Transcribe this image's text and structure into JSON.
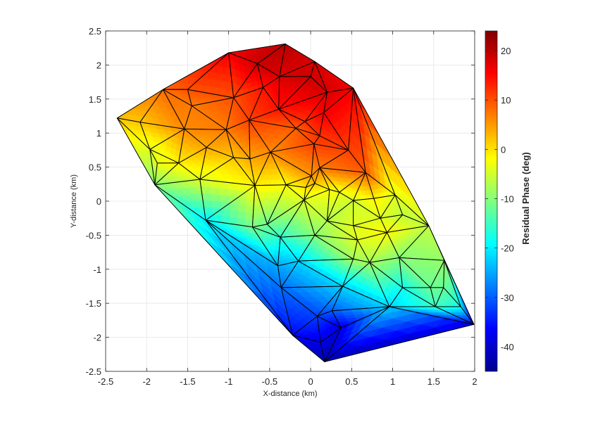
{
  "chart_data": {
    "type": "heatmap",
    "subtype": "triangulated-surface",
    "xlabel": "X-distance (km)",
    "ylabel": "Y-distance (km)",
    "colorbar_label": "Residual Phase (deg)",
    "xlim": [
      -2.5,
      2
    ],
    "ylim": [
      -2.5,
      2.5
    ],
    "clim": [
      -45,
      24
    ],
    "colormap": "jet",
    "grid": true,
    "x_ticks": [
      "-2.5",
      "-2",
      "-1.5",
      "-1",
      "-0.5",
      "0",
      "0.5",
      "1",
      "1.5",
      "2"
    ],
    "y_ticks": [
      "-2.5",
      "-2",
      "-1.5",
      "-1",
      "-0.5",
      "0",
      "0.5",
      "1",
      "1.5",
      "2",
      "2.5"
    ],
    "colorbar_ticks": [
      "-40",
      "-30",
      "-20",
      "-10",
      "0",
      "10",
      "20"
    ],
    "nodes": [
      [
        -2.36,
        1.22
      ],
      [
        -1.8,
        1.64
      ],
      [
        -1.0,
        2.18
      ],
      [
        -0.31,
        2.31
      ],
      [
        0.05,
        2.05
      ],
      [
        0.52,
        1.66
      ],
      [
        1.99,
        -1.81
      ],
      [
        0.17,
        -2.36
      ],
      [
        -1.9,
        0.24
      ],
      [
        -2.08,
        1.16
      ],
      [
        -1.96,
        0.76
      ],
      [
        -1.45,
        1.4
      ],
      [
        -1.54,
        1.06
      ],
      [
        -1.27,
        0.79
      ],
      [
        -1.87,
        0.56
      ],
      [
        -1.61,
        0.56
      ],
      [
        -1.35,
        0.32
      ],
      [
        -0.58,
        1.67
      ],
      [
        -0.94,
        1.52
      ],
      [
        -1.5,
        1.64
      ],
      [
        -0.65,
        2.02
      ],
      [
        -0.38,
        1.83
      ],
      [
        0.0,
        1.83
      ],
      [
        0.2,
        1.6
      ],
      [
        0.16,
        1.3
      ],
      [
        -0.07,
        1.17
      ],
      [
        -0.39,
        1.35
      ],
      [
        -0.75,
        1.19
      ],
      [
        -1.03,
        1.05
      ],
      [
        -0.94,
        0.64
      ],
      [
        -0.74,
        0.62
      ],
      [
        -0.49,
        0.72
      ],
      [
        -0.18,
        1.07
      ],
      [
        0.04,
        0.84
      ],
      [
        0.46,
        0.75
      ],
      [
        0.67,
        0.42
      ],
      [
        0.11,
        0.49
      ],
      [
        0.01,
        0.37
      ],
      [
        0.05,
        0.26
      ],
      [
        -0.06,
        0.2
      ],
      [
        -0.08,
        0.02
      ],
      [
        -0.3,
        0.24
      ],
      [
        -0.68,
        0.23
      ],
      [
        -1.28,
        -0.28
      ],
      [
        -0.71,
        -0.38
      ],
      [
        -0.53,
        -0.34
      ],
      [
        -0.37,
        -0.53
      ],
      [
        -0.4,
        -0.95
      ],
      [
        -0.36,
        -1.27
      ],
      [
        -0.15,
        -0.88
      ],
      [
        0.05,
        -0.5
      ],
      [
        0.2,
        -0.29
      ],
      [
        0.23,
        0.17
      ],
      [
        0.35,
        0.13
      ],
      [
        0.52,
        0.01
      ],
      [
        1.03,
        0.09
      ],
      [
        1.12,
        -0.2
      ],
      [
        1.44,
        -0.36
      ],
      [
        1.63,
        -0.87
      ],
      [
        1.46,
        -1.27
      ],
      [
        1.62,
        -1.27
      ],
      [
        1.83,
        -1.55
      ],
      [
        1.52,
        -1.55
      ],
      [
        0.96,
        -1.55
      ],
      [
        1.12,
        -1.27
      ],
      [
        1.08,
        -0.83
      ],
      [
        0.72,
        -0.9
      ],
      [
        0.52,
        -0.85
      ],
      [
        0.57,
        -0.57
      ],
      [
        0.93,
        -0.46
      ],
      [
        0.52,
        -0.36
      ],
      [
        0.39,
        -1.25
      ],
      [
        0.37,
        -1.86
      ],
      [
        0.08,
        -1.69
      ],
      [
        0.12,
        -2.07
      ],
      [
        -0.22,
        -1.97
      ],
      [
        0.26,
        -1.61
      ],
      [
        0.11,
        0.96
      ],
      [
        0.77,
        0.04
      ],
      [
        0.85,
        -0.25
      ]
    ],
    "node_values": [
      2,
      8,
      16,
      20,
      18,
      16,
      -38,
      -42,
      -10,
      2,
      -4,
      7,
      6,
      4,
      -3,
      -1,
      -4,
      14,
      10,
      10,
      19,
      18,
      19,
      18,
      16,
      12,
      14,
      11,
      7,
      2,
      4,
      6,
      9,
      11,
      11,
      9,
      7,
      5,
      2,
      0,
      -4,
      -2,
      -1,
      -20,
      -11,
      -12,
      -16,
      -25,
      -29,
      -22,
      -10,
      -7,
      -2,
      -3,
      -5,
      -4,
      -6,
      -6,
      -9,
      -12,
      -12,
      -18,
      -15,
      -22,
      -18,
      -10,
      -8,
      -8,
      -4,
      -2,
      -4,
      -22,
      -38,
      -32,
      -38,
      -36,
      -30,
      12,
      -1,
      -4
    ]
  }
}
